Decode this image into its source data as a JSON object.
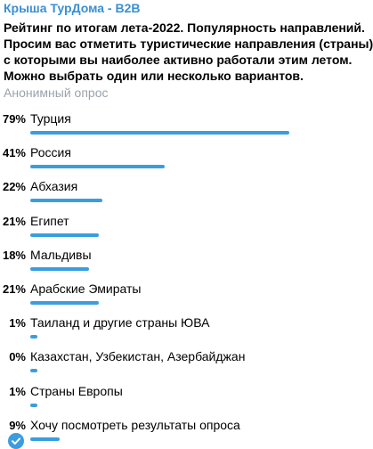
{
  "channel": {
    "name": "Крыша ТурДома - B2B"
  },
  "poll": {
    "question_lines": [
      "Рейтинг по итогам лета-2022. Популярность направлений.",
      "Просим вас отметить туристические направления (страны)",
      "с которыми вы наиболее активно работали этим летом.",
      "Можно выбрать один или несколько вариантов."
    ],
    "type_label": "Анонимный опрос",
    "accent_color": "#3a9de0",
    "options": [
      {
        "percent_label": "79%",
        "percent": 79,
        "label": "Турция",
        "selected": false
      },
      {
        "percent_label": "41%",
        "percent": 41,
        "label": "Россия",
        "selected": false
      },
      {
        "percent_label": "22%",
        "percent": 22,
        "label": "Абхазия",
        "selected": false
      },
      {
        "percent_label": "21%",
        "percent": 21,
        "label": "Египет",
        "selected": false
      },
      {
        "percent_label": "18%",
        "percent": 18,
        "label": "Мальдивы",
        "selected": false
      },
      {
        "percent_label": "21%",
        "percent": 21,
        "label": "Арабские Эмираты",
        "selected": false
      },
      {
        "percent_label": "1%",
        "percent": 1,
        "label": "Таиланд и другие страны ЮВА",
        "selected": false
      },
      {
        "percent_label": "0%",
        "percent": 0,
        "label": "Казахстан, Узбекистан, Азербайджан",
        "selected": false
      },
      {
        "percent_label": "1%",
        "percent": 1,
        "label": "Страны Европы",
        "selected": false
      },
      {
        "percent_label": "9%",
        "percent": 9,
        "label": "Хочу посмотреть результаты опроса",
        "selected": true,
        "icon": "check-icon"
      }
    ]
  }
}
